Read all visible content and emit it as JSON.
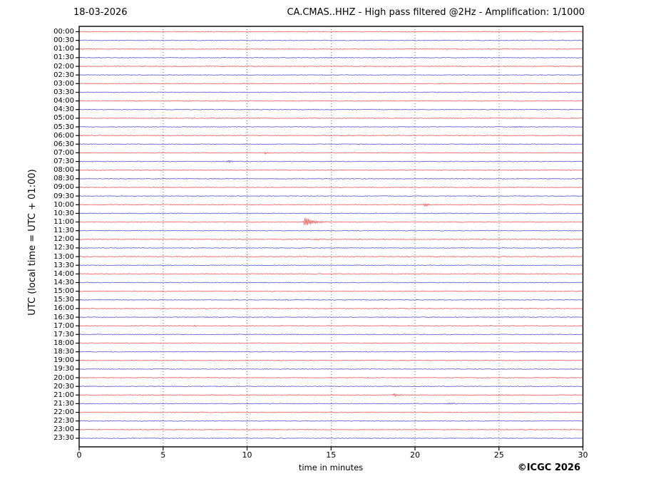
{
  "header": {
    "date": "18-03-2026",
    "title": "CA.CMAS..HHZ - High pass filtered @2Hz - Amplification: 1/1000"
  },
  "axes": {
    "y_title": "UTC (local time = UTC + 01:00)",
    "x_title": "time in minutes"
  },
  "footer": {
    "copyright": "©ICGC 2026"
  },
  "chart_data": {
    "type": "line",
    "subtype": "helicorder-day-plot",
    "station": "CA.CMAS..HHZ",
    "title": "CA.CMAS..HHZ - High pass filtered @2Hz - Amplification: 1/1000",
    "date": "18-03-2026",
    "xlabel": "time in minutes",
    "ylabel": "UTC (local time = UTC + 01:00)",
    "xlim": [
      0,
      30
    ],
    "minutes_per_row": 30,
    "x_ticks": [
      0,
      5,
      10,
      15,
      20,
      25,
      30
    ],
    "grid": {
      "vertical_dotted_at": [
        5,
        10,
        15,
        20,
        25
      ],
      "color": "#666666"
    },
    "row_labels": [
      "00:00",
      "00:30",
      "01:00",
      "01:30",
      "02:00",
      "02:30",
      "03:00",
      "03:30",
      "04:00",
      "04:30",
      "05:00",
      "05:30",
      "06:00",
      "06:30",
      "07:00",
      "07:30",
      "08:00",
      "08:30",
      "09:00",
      "09:30",
      "10:00",
      "10:30",
      "11:00",
      "11:30",
      "12:00",
      "12:30",
      "13:00",
      "13:30",
      "14:00",
      "14:30",
      "15:00",
      "15:30",
      "16:00",
      "16:30",
      "17:00",
      "17:30",
      "18:00",
      "18:30",
      "19:00",
      "19:30",
      "20:00",
      "20:30",
      "21:00",
      "21:30",
      "22:00",
      "22:30",
      "23:00",
      "23:30"
    ],
    "trace_color_cycle": [
      "#ee5555",
      "#5555cc"
    ],
    "axis_color": "#000000",
    "events": [
      {
        "row": "05:30",
        "minute": 26.0,
        "amplitude": 1.1,
        "rise": 0.1,
        "decay": 0.25
      },
      {
        "row": "07:00",
        "minute": 11.1,
        "amplitude": 1.8,
        "rise": 0.05,
        "decay": 0.12
      },
      {
        "row": "07:30",
        "minute": 8.9,
        "amplitude": 1.7,
        "rise": 0.06,
        "decay": 0.15
      },
      {
        "row": "10:00",
        "minute": 20.6,
        "amplitude": 2.4,
        "rise": 0.07,
        "decay": 0.22
      },
      {
        "row": "11:00",
        "minute": 13.45,
        "amplitude": 6.5,
        "rise": 0.06,
        "decay": 0.5
      },
      {
        "row": "12:00",
        "minute": 14.15,
        "amplitude": 0.9,
        "rise": 0.15,
        "decay": 0.35
      },
      {
        "row": "17:00",
        "minute": 6.9,
        "amplitude": 1.3,
        "rise": 0.04,
        "decay": 0.1
      },
      {
        "row": "21:00",
        "minute": 18.8,
        "amplitude": 2.2,
        "rise": 0.08,
        "decay": 0.25
      },
      {
        "row": "21:30",
        "minute": 22.0,
        "amplitude": 1.2,
        "rise": 0.12,
        "decay": 0.3
      }
    ]
  }
}
